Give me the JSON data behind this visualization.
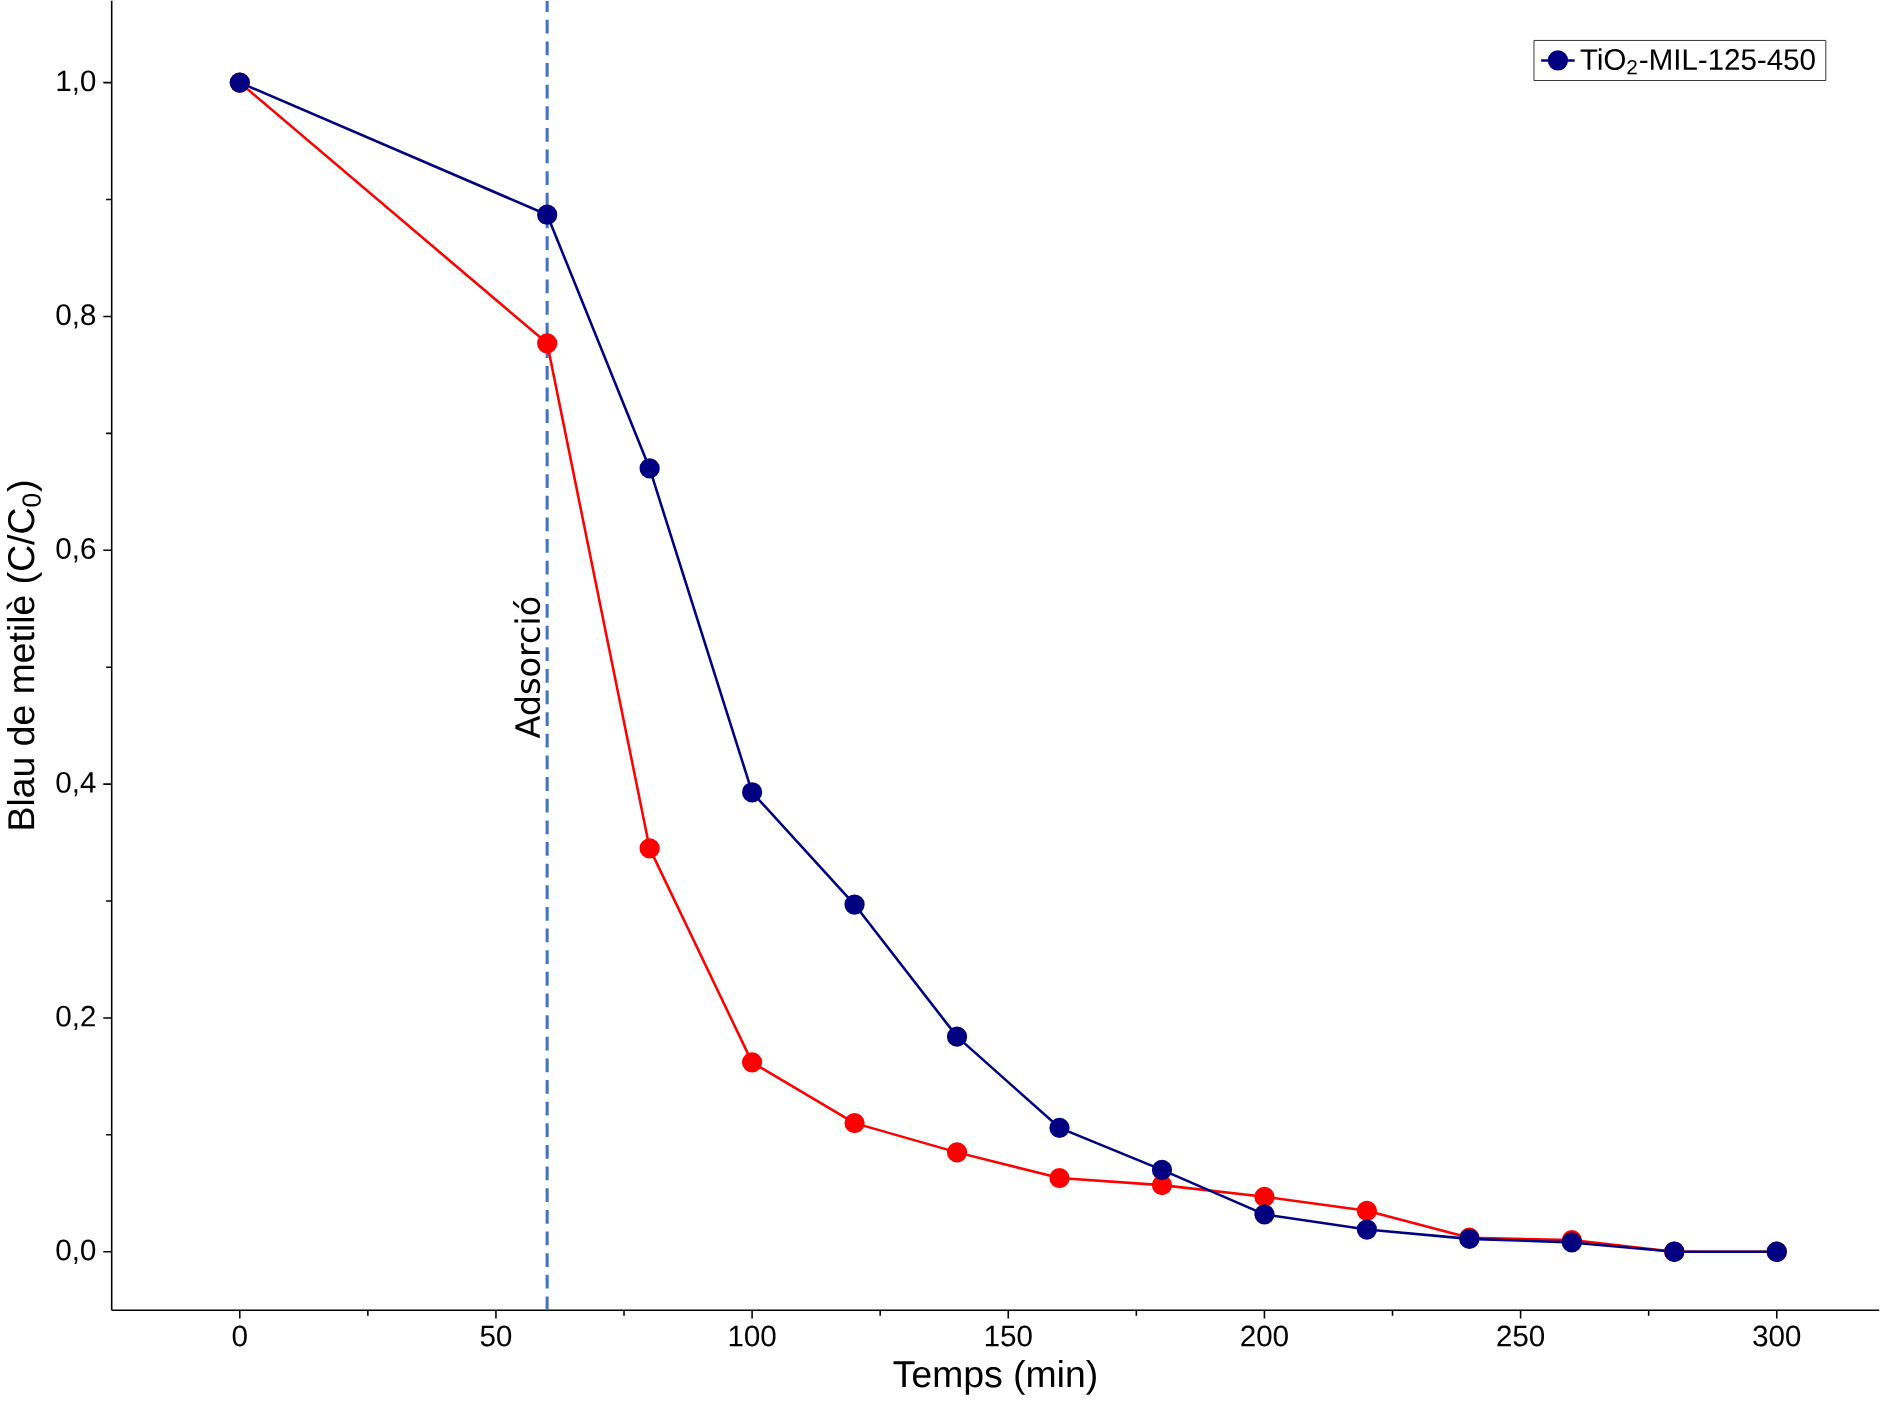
{
  "chart_data": {
    "type": "line",
    "xlabel": "Temps (min)",
    "ylabel": "Blau de metilè (C/C$_{0}$)",
    "x": [
      0,
      60,
      80,
      100,
      120,
      140,
      160,
      180,
      200,
      220,
      240,
      260,
      280,
      300
    ],
    "series": [
      {
        "color": "#ff0000",
        "values": [
          1.0,
          0.777,
          0.345,
          0.162,
          0.11,
          0.085,
          0.063,
          0.057,
          0.047,
          0.035,
          0.012,
          0.01,
          0.0,
          0.0
        ]
      },
      {
        "name": "TiO$_{2}$-MIL-125-450",
        "color": "#000080",
        "values": [
          1.0,
          0.887,
          0.67,
          0.393,
          0.297,
          0.184,
          0.106,
          0.07,
          0.032,
          0.019,
          0.011,
          0.008,
          0.0,
          0.0
        ]
      }
    ],
    "xlim": [
      -25,
      320
    ],
    "ylim": [
      -0.05,
      1.07
    ],
    "xticks": [
      0,
      50,
      100,
      150,
      200,
      250,
      300
    ],
    "yticks": [
      {
        "value": 0,
        "label": "0,0"
      },
      {
        "value": 0.2,
        "label": "0,2"
      },
      {
        "value": 0.4,
        "label": "0,4"
      },
      {
        "value": 0.6,
        "label": "0,6"
      },
      {
        "value": 0.8,
        "label": "0,8"
      },
      {
        "value": 1.0,
        "label": "1,0"
      }
    ],
    "ref_lines": [
      {
        "axis": "x",
        "value": 60,
        "label": "Adsorció",
        "color": "#4472c4",
        "line_style": "dashed"
      }
    ],
    "marker": "circle",
    "line_style": "solid",
    "grid": false,
    "legend": "top right"
  }
}
